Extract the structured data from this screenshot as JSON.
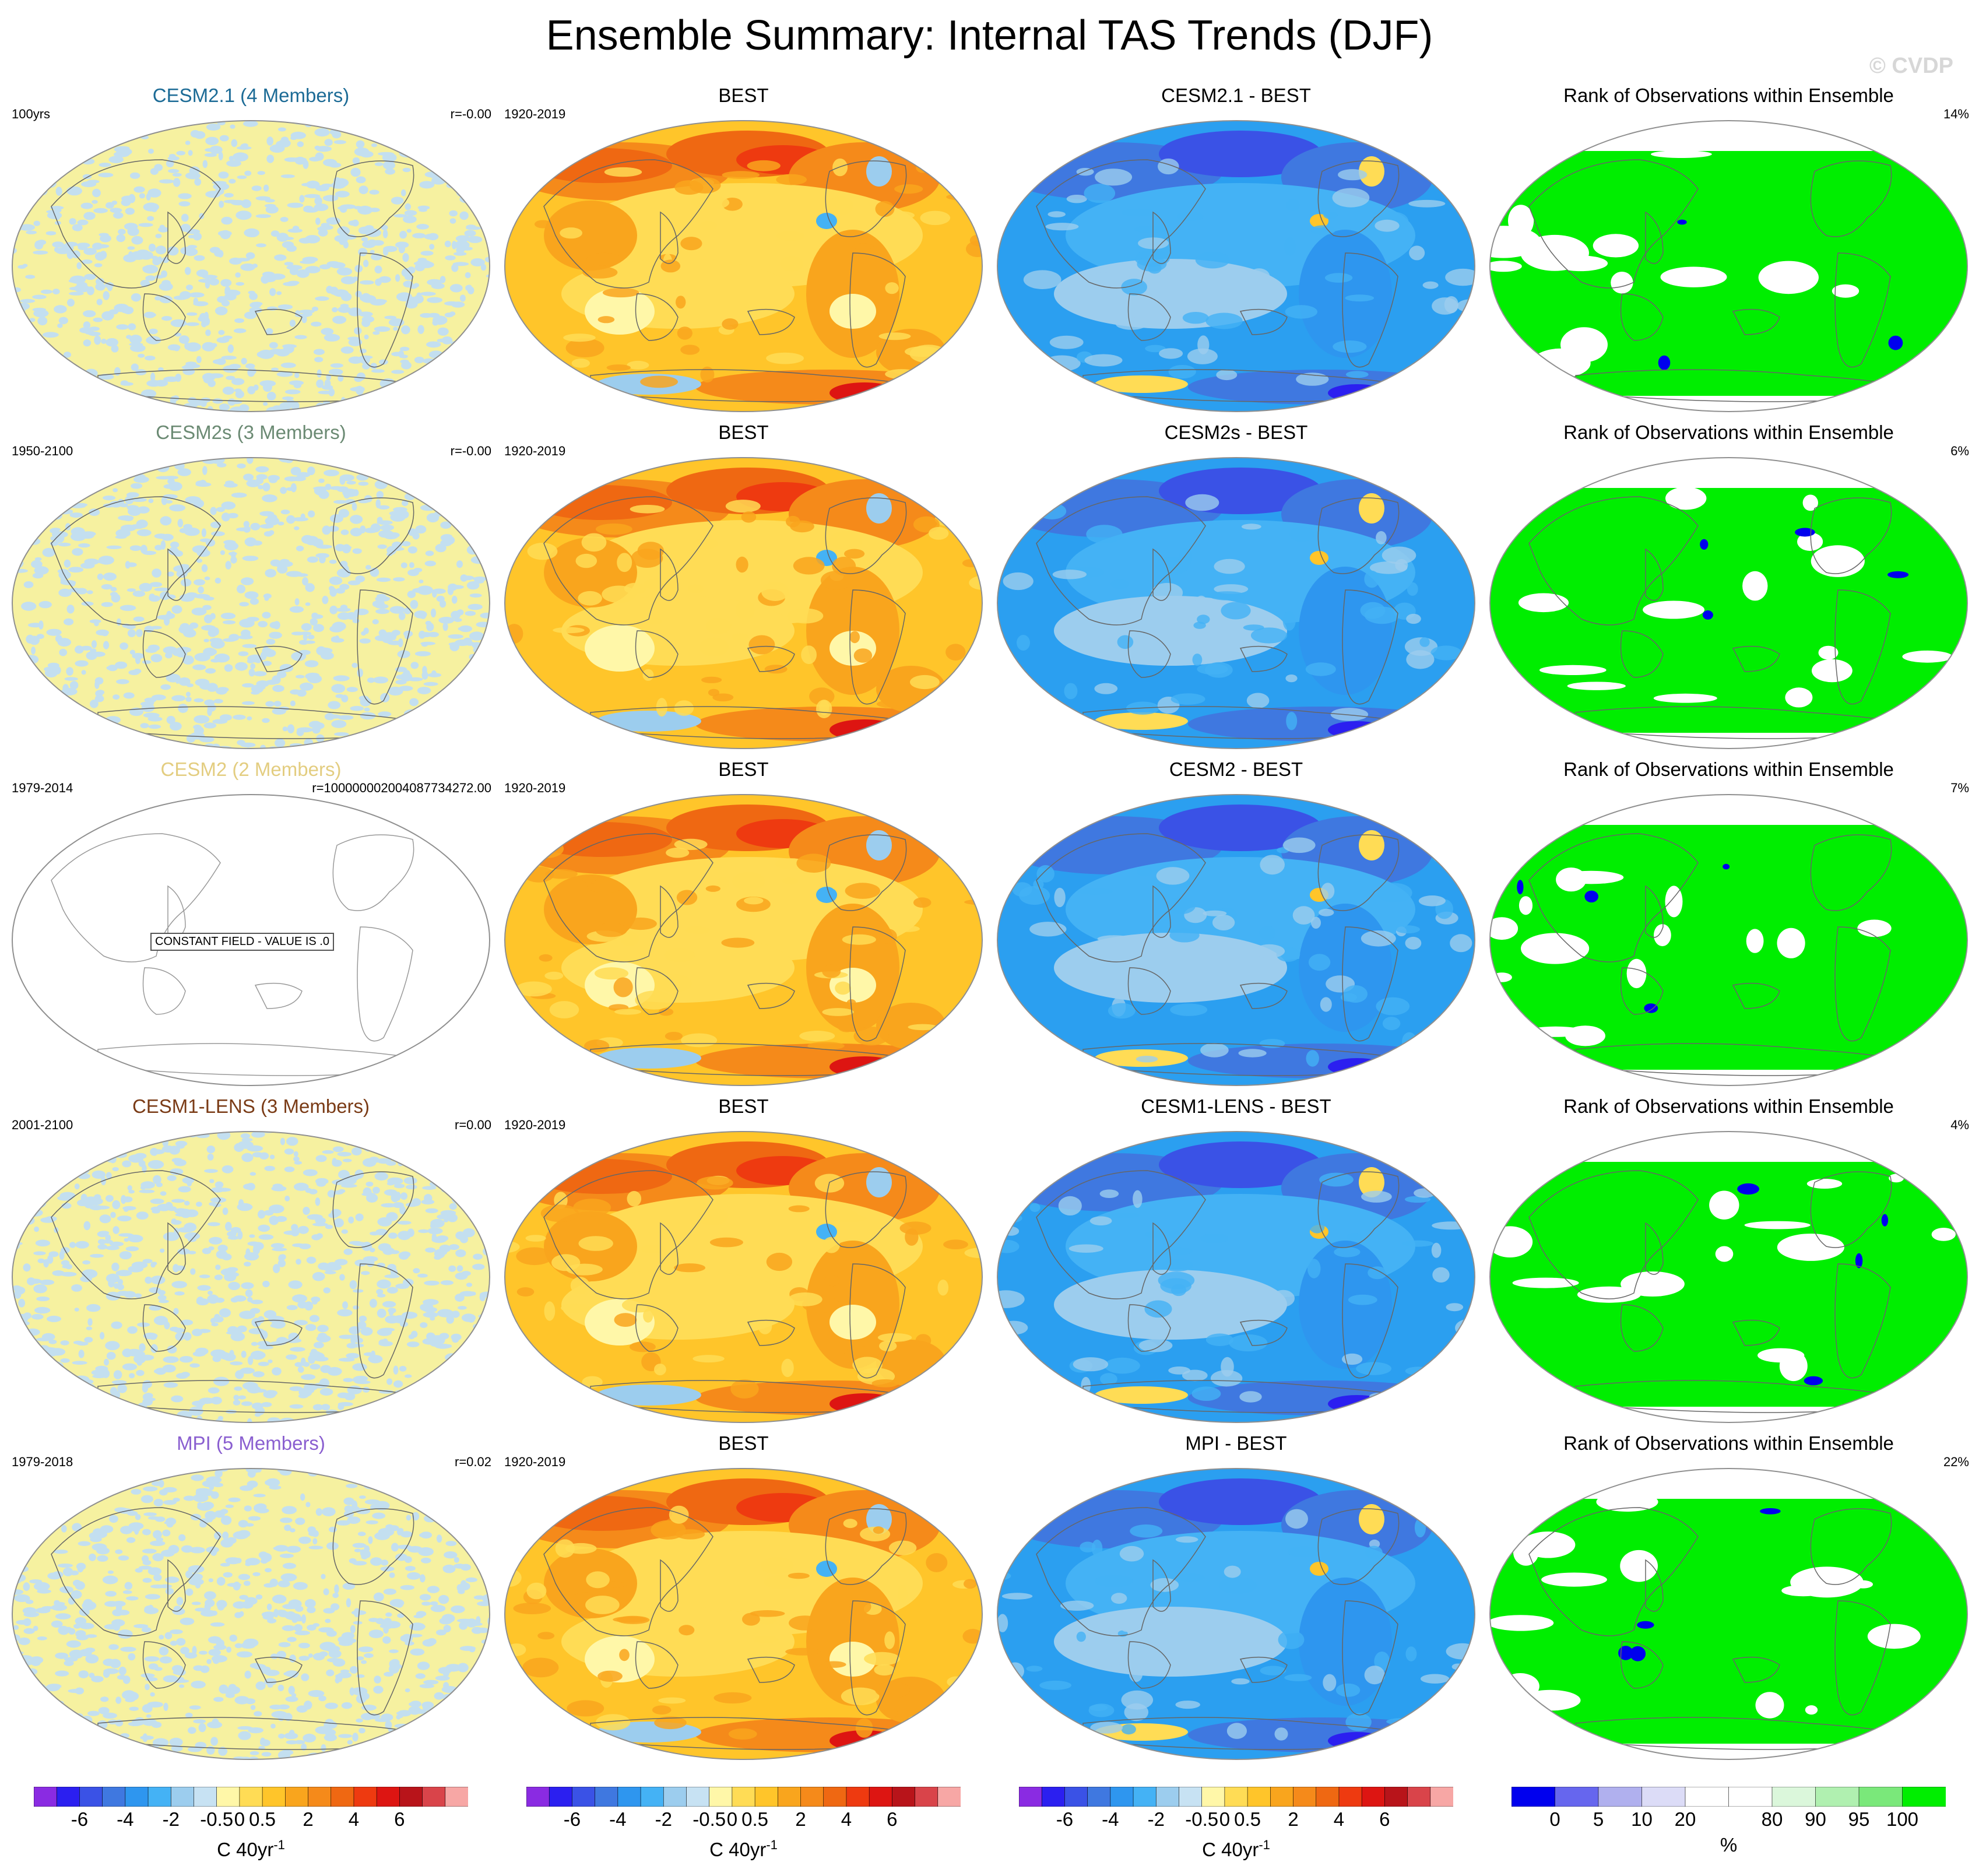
{
  "title": "Ensemble Summary: Internal TAS Trends (DJF)",
  "copyright": "© CVDP",
  "constant_field_label": "CONSTANT FIELD - VALUE IS .0",
  "colors": {
    "ocean": "#2b9ff0",
    "land_warm": "#f6a21a",
    "rank_green": "#00ee00",
    "neutral_pale": "#f6f1a0",
    "neutral_blue": "#c3dff0"
  },
  "rows": [
    {
      "model_title": "CESM2.1 (4 Members)",
      "model_color": "#1c6b96",
      "period": "100yrs",
      "r_text": "r=-0.00",
      "obs_title": "BEST",
      "obs_period": "1920-2019",
      "diff_title": "CESM2.1 - BEST",
      "rank_title": "Rank of Observations within Ensemble",
      "rank_pct": "14%",
      "constant": false
    },
    {
      "model_title": "CESM2s (3 Members)",
      "model_color": "#6b8a73",
      "period": "1950-2100",
      "r_text": "r=-0.00",
      "obs_title": "BEST",
      "obs_period": "1920-2019",
      "diff_title": "CESM2s - BEST",
      "rank_title": "Rank of Observations within Ensemble",
      "rank_pct": "6%",
      "constant": false
    },
    {
      "model_title": "CESM2 (2 Members)",
      "model_color": "#e3cd80",
      "period": "1979-2014",
      "r_text": "r=100000002004087734272.00",
      "obs_title": "BEST",
      "obs_period": "1920-2019",
      "diff_title": "CESM2 - BEST",
      "rank_title": "Rank of Observations within Ensemble",
      "rank_pct": "7%",
      "constant": true
    },
    {
      "model_title": "CESM1-LENS (3 Members)",
      "model_color": "#7a3b16",
      "period": "2001-2100",
      "r_text": "r=0.00",
      "obs_title": "BEST",
      "obs_period": "1920-2019",
      "diff_title": "CESM1-LENS - BEST",
      "rank_title": "Rank of Observations within Ensemble",
      "rank_pct": "4%",
      "constant": false
    },
    {
      "model_title": "MPI (5 Members)",
      "model_color": "#8a5fd0",
      "period": "1979-2018",
      "r_text": "r=0.02",
      "obs_title": "BEST",
      "obs_period": "1920-2019",
      "diff_title": "MPI - BEST",
      "rank_title": "Rank of Observations within Ensemble",
      "rank_pct": "22%",
      "constant": false
    }
  ],
  "chart_data": [
    {
      "type": "colorbar",
      "title": "Trend colorbar",
      "levels": [
        "-6",
        "-4",
        "-2",
        "-0.5",
        "0",
        "0.5",
        "2",
        "4",
        "6"
      ],
      "unit": "C 40yr",
      "unit_sup": "-1",
      "colors": [
        "#8a2be2",
        "#2b1ff0",
        "#3a52e6",
        "#3f78e0",
        "#2e96ef",
        "#44b2f5",
        "#9ccdee",
        "#c7e2f3",
        "#fff7a8",
        "#ffdc55",
        "#ffc52a",
        "#f9a51d",
        "#f58a1a",
        "#ef6812",
        "#ee3a10",
        "#dd1512",
        "#b8141a",
        "#d9444a",
        "#f7a7a5"
      ]
    },
    {
      "type": "colorbar",
      "title": "Rank colorbar",
      "levels": [
        "0",
        "5",
        "10",
        "20",
        "80",
        "90",
        "95",
        "100"
      ],
      "unit": "%",
      "colors": [
        "#0000ee",
        "#6666ee",
        "#b0b0ee",
        "#dcdcf7",
        "#ffffff",
        "#ffffff",
        "#dbf7db",
        "#b0f0b0",
        "#7ae87a",
        "#00ee00"
      ]
    }
  ]
}
